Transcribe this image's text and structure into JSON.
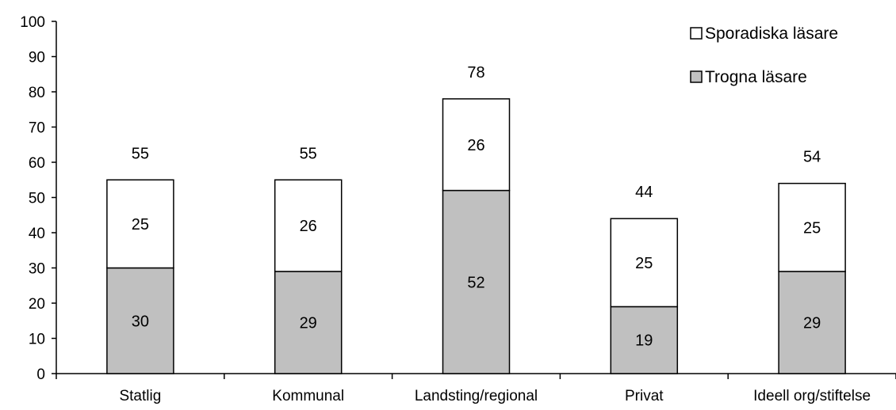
{
  "chart_data": {
    "type": "bar",
    "stacked": true,
    "categories": [
      "Statlig",
      "Kommunal",
      "Landsting/regional",
      "Privat",
      "Ideell org/stiftelse"
    ],
    "series": [
      {
        "name": "Trogna läsare",
        "values": [
          30,
          29,
          52,
          19,
          29
        ],
        "color": "#c0c0c0"
      },
      {
        "name": "Sporadiska läsare",
        "values": [
          25,
          26,
          26,
          25,
          25
        ],
        "color": "#ffffff"
      }
    ],
    "totals": [
      55,
      55,
      78,
      44,
      54
    ],
    "ylim": [
      0,
      100
    ],
    "yticks": [
      0,
      10,
      20,
      30,
      40,
      50,
      60,
      70,
      80,
      90,
      100
    ],
    "legend_position": "top-right",
    "legend_order": [
      "Sporadiska läsare",
      "Trogna läsare"
    ],
    "grid": false
  }
}
